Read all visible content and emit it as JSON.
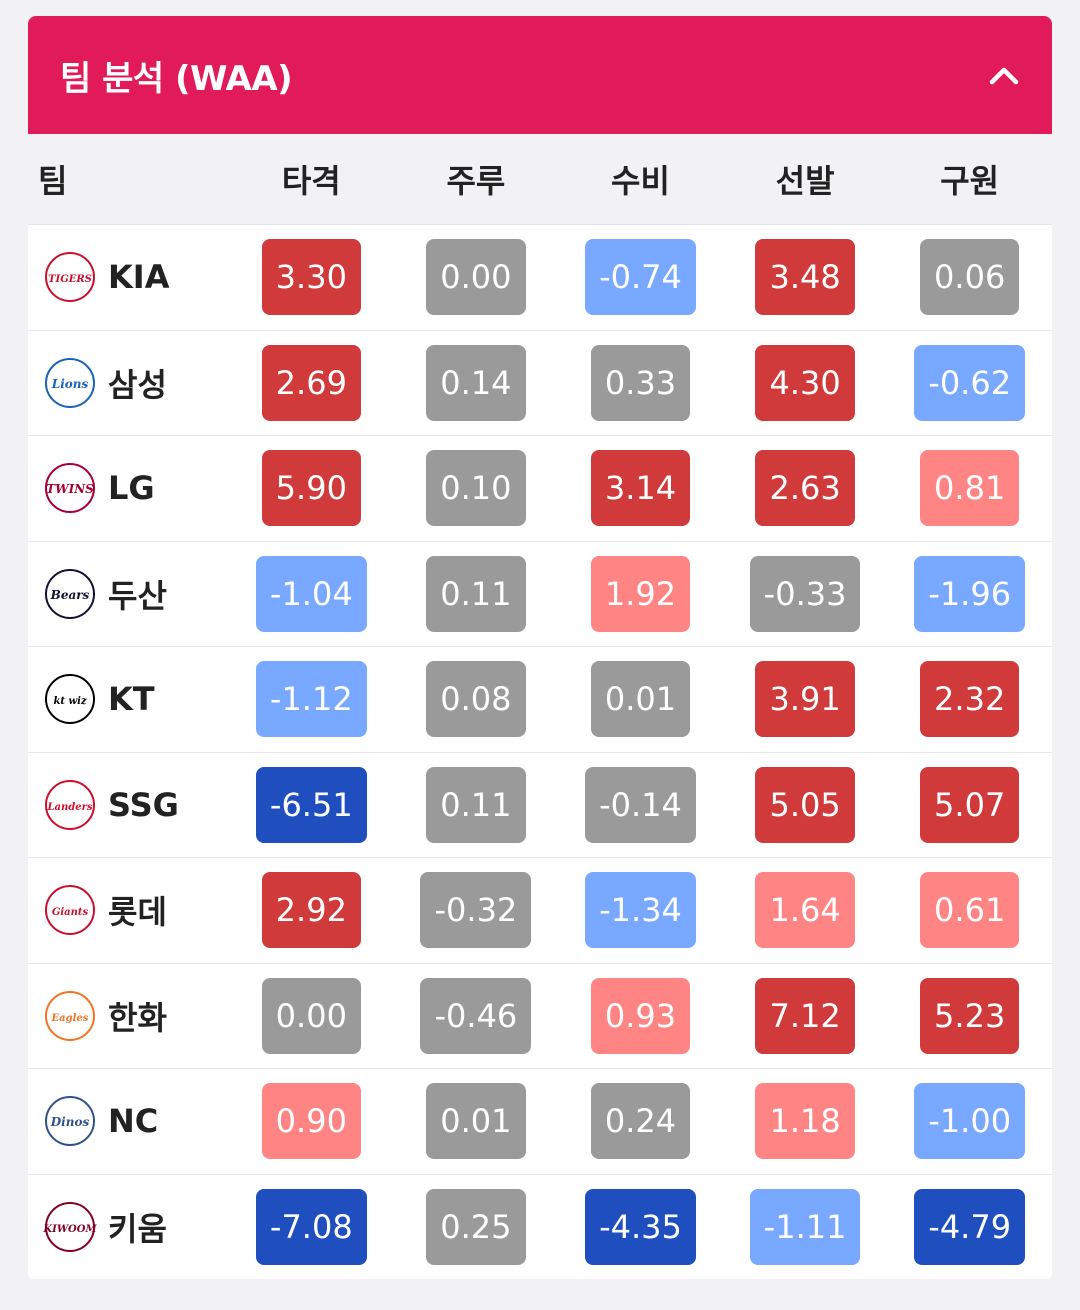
{
  "header": {
    "title": "팀 분석 (WAA)"
  },
  "columns": [
    "팀",
    "타격",
    "주루",
    "수비",
    "선발",
    "구원"
  ],
  "colors": {
    "red": "#d03a3a",
    "pink": "#ff8585",
    "gray": "#9a9a9a",
    "light_blue": "#78a8ff",
    "dark_blue": "#1f4fbf",
    "header_bg": "#e11a59"
  },
  "rows": [
    {
      "team": "KIA",
      "logo": "tigers-logo-icon",
      "logo_text": "TIGERS",
      "logo_color": "#c8102e",
      "values": [
        "3.30",
        "0.00",
        "-0.74",
        "3.48",
        "0.06"
      ],
      "levels": [
        "red",
        "gray",
        "lblue",
        "red",
        "gray"
      ]
    },
    {
      "team": "삼성",
      "logo": "lions-logo-icon",
      "logo_text": "Lions",
      "logo_color": "#1a64b8",
      "values": [
        "2.69",
        "0.14",
        "0.33",
        "4.30",
        "-0.62"
      ],
      "levels": [
        "red",
        "gray",
        "gray",
        "red",
        "lblue"
      ]
    },
    {
      "team": "LG",
      "logo": "twins-logo-icon",
      "logo_text": "TWINS",
      "logo_color": "#a50034",
      "values": [
        "5.90",
        "0.10",
        "3.14",
        "2.63",
        "0.81"
      ],
      "levels": [
        "red",
        "gray",
        "red",
        "red",
        "pink"
      ]
    },
    {
      "team": "두산",
      "logo": "bears-logo-icon",
      "logo_text": "Bears",
      "logo_color": "#131230",
      "values": [
        "-1.04",
        "0.11",
        "1.92",
        "-0.33",
        "-1.96"
      ],
      "levels": [
        "lblue",
        "gray",
        "pink",
        "gray",
        "lblue"
      ]
    },
    {
      "team": "KT",
      "logo": "ktwiz-logo-icon",
      "logo_text": "kt wiz",
      "logo_color": "#000000",
      "values": [
        "-1.12",
        "0.08",
        "0.01",
        "3.91",
        "2.32"
      ],
      "levels": [
        "lblue",
        "gray",
        "gray",
        "red",
        "red"
      ]
    },
    {
      "team": "SSG",
      "logo": "landers-logo-icon",
      "logo_text": "Landers",
      "logo_color": "#ce0e2d",
      "values": [
        "-6.51",
        "0.11",
        "-0.14",
        "5.05",
        "5.07"
      ],
      "levels": [
        "dblue",
        "gray",
        "gray",
        "red",
        "red"
      ]
    },
    {
      "team": "롯데",
      "logo": "giants-logo-icon",
      "logo_text": "Giants",
      "logo_color": "#c8102e",
      "values": [
        "2.92",
        "-0.32",
        "-1.34",
        "1.64",
        "0.61"
      ],
      "levels": [
        "red",
        "gray",
        "lblue",
        "pink",
        "pink"
      ]
    },
    {
      "team": "한화",
      "logo": "eagles-logo-icon",
      "logo_text": "Eagles",
      "logo_color": "#f37321",
      "values": [
        "0.00",
        "-0.46",
        "0.93",
        "7.12",
        "5.23"
      ],
      "levels": [
        "gray",
        "gray",
        "pink",
        "red",
        "red"
      ]
    },
    {
      "team": "NC",
      "logo": "dinos-logo-icon",
      "logo_text": "Dinos",
      "logo_color": "#315288",
      "values": [
        "0.90",
        "0.01",
        "0.24",
        "1.18",
        "-1.00"
      ],
      "levels": [
        "pink",
        "gray",
        "gray",
        "pink",
        "lblue"
      ]
    },
    {
      "team": "키움",
      "logo": "kiwoom-logo-icon",
      "logo_text": "KIWOOM",
      "logo_color": "#820024",
      "values": [
        "-7.08",
        "0.25",
        "-4.35",
        "-1.11",
        "-4.79"
      ],
      "levels": [
        "dblue",
        "gray",
        "dblue",
        "lblue",
        "dblue"
      ]
    }
  ]
}
